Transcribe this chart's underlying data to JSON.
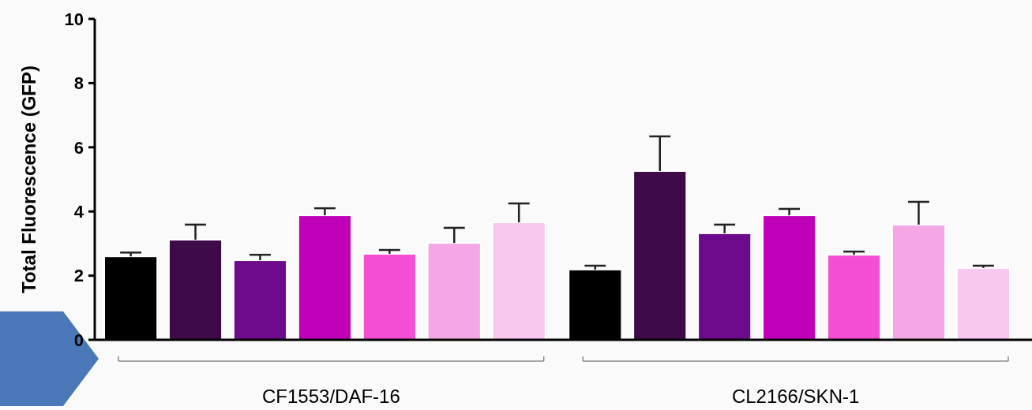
{
  "chart_data": {
    "type": "bar",
    "ylabel": "Total Fluorescence (GFP)",
    "categories": [
      "CF1553/DAF-16",
      "CL2166/SKN-1"
    ],
    "series": [
      {
        "color": "#000000",
        "values": [
          2.6,
          2.19
        ],
        "errors": [
          [
            2.6,
            2.72
          ],
          [
            2.19,
            2.31
          ]
        ]
      },
      {
        "color": "#3f0a48",
        "values": [
          3.12,
          5.26
        ],
        "errors": [
          [
            3.12,
            3.59
          ],
          [
            5.26,
            6.34
          ]
        ]
      },
      {
        "color": "#6e0a8c",
        "values": [
          2.48,
          3.32
        ],
        "errors": [
          [
            2.48,
            2.65
          ],
          [
            3.32,
            3.59
          ]
        ]
      },
      {
        "color": "#c000b8",
        "values": [
          3.88,
          3.88
        ],
        "errors": [
          [
            3.88,
            4.1
          ],
          [
            3.88,
            4.08
          ]
        ]
      },
      {
        "color": "#f44ed4",
        "values": [
          2.68,
          2.65
        ],
        "errors": [
          [
            2.68,
            2.8
          ],
          [
            2.65,
            2.75
          ]
        ]
      },
      {
        "color": "#f4a6e6",
        "values": [
          3.02,
          3.59
        ],
        "errors": [
          [
            3.02,
            3.49
          ],
          [
            3.59,
            4.3
          ]
        ]
      },
      {
        "color": "#f8c8ee",
        "values": [
          3.66,
          2.24
        ],
        "errors": [
          [
            3.66,
            4.25
          ],
          [
            2.24,
            2.31
          ]
        ]
      }
    ],
    "ylim": [
      0,
      10
    ],
    "yticks": [
      0,
      2,
      4,
      6,
      8,
      10
    ]
  }
}
